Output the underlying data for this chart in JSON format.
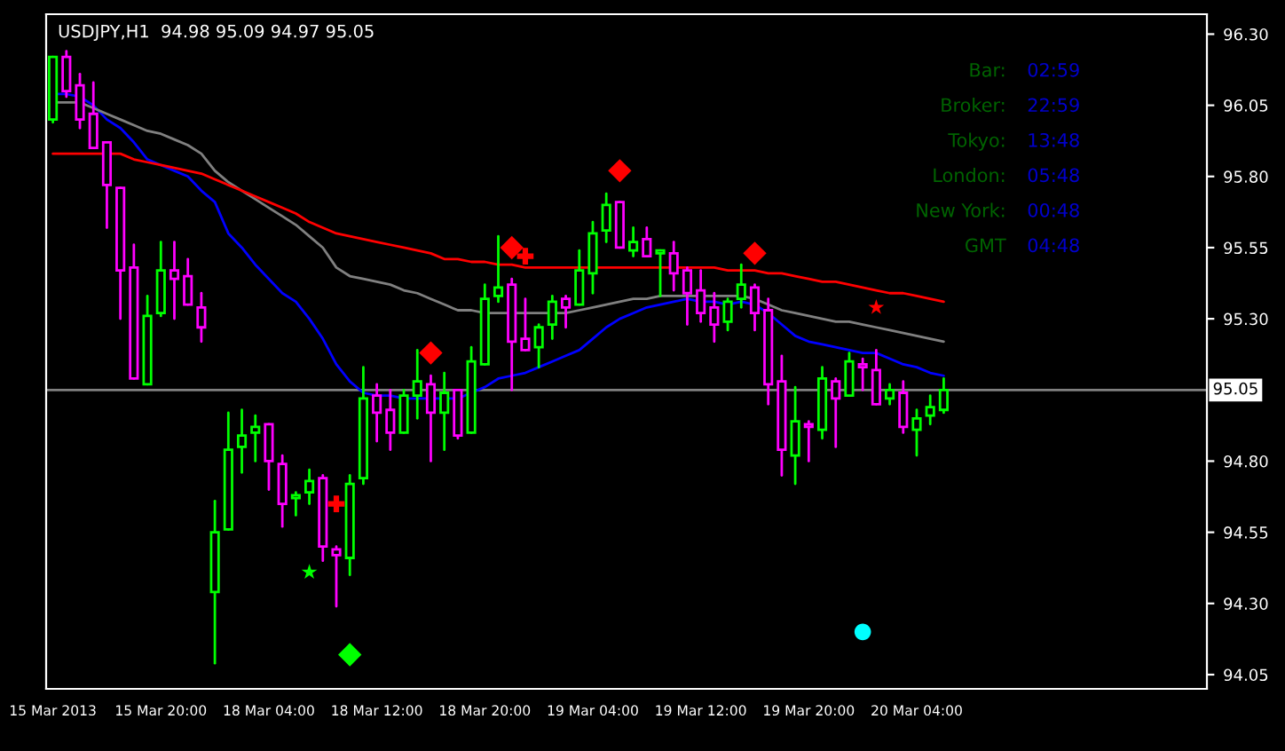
{
  "chart_data": {
    "type": "candlestick",
    "title": "USDJPY,H1  94.98 95.09 94.97 95.05",
    "categories": [
      "15 Mar 2013",
      null,
      null,
      null,
      null,
      null,
      null,
      null,
      "15 Mar 20:00",
      null,
      null,
      null,
      null,
      null,
      null,
      null,
      "18 Mar 04:00",
      null,
      null,
      null,
      null,
      null,
      null,
      null,
      "18 Mar 12:00",
      null,
      null,
      null,
      null,
      null,
      null,
      null,
      "18 Mar 20:00",
      null,
      null,
      null,
      null,
      null,
      null,
      null,
      "19 Mar 04:00",
      null,
      null,
      null,
      null,
      null,
      null,
      null,
      "19 Mar 12:00",
      null,
      null,
      null,
      null,
      null,
      null,
      null,
      "19 Mar 20:00",
      null,
      null,
      null,
      null,
      null,
      null,
      null,
      "20 Mar 04:00",
      null,
      null
    ],
    "ohlc": [
      [
        96.0,
        96.22,
        95.99,
        96.22
      ],
      [
        96.22,
        96.24,
        96.08,
        96.1
      ],
      [
        96.12,
        96.16,
        95.97,
        96.0
      ],
      [
        96.02,
        96.13,
        95.9,
        95.9
      ],
      [
        95.92,
        95.92,
        95.62,
        95.77
      ],
      [
        95.76,
        95.76,
        95.3,
        95.47
      ],
      [
        95.48,
        95.56,
        95.09,
        95.09
      ],
      [
        95.07,
        95.38,
        95.07,
        95.31
      ],
      [
        95.32,
        95.57,
        95.31,
        95.47
      ],
      [
        95.47,
        95.57,
        95.3,
        95.44
      ],
      [
        95.45,
        95.51,
        95.35,
        95.35
      ],
      [
        95.34,
        95.39,
        95.22,
        95.27
      ],
      [
        94.34,
        94.66,
        94.09,
        94.55
      ],
      [
        94.56,
        94.97,
        94.56,
        94.84
      ],
      [
        94.85,
        94.98,
        94.76,
        94.89
      ],
      [
        94.9,
        94.96,
        94.8,
        94.92
      ],
      [
        94.93,
        94.93,
        94.7,
        94.8
      ],
      [
        94.79,
        94.82,
        94.57,
        94.65
      ],
      [
        94.67,
        94.69,
        94.61,
        94.68
      ],
      [
        94.69,
        94.77,
        94.65,
        94.73
      ],
      [
        94.74,
        94.75,
        94.45,
        94.5
      ],
      [
        94.49,
        94.5,
        94.29,
        94.47
      ],
      [
        94.46,
        94.75,
        94.4,
        94.72
      ],
      [
        94.74,
        95.13,
        94.72,
        95.02
      ],
      [
        95.03,
        95.07,
        94.87,
        94.97
      ],
      [
        94.98,
        95.05,
        94.84,
        94.9
      ],
      [
        94.9,
        95.05,
        94.9,
        95.03
      ],
      [
        95.03,
        95.19,
        94.95,
        95.08
      ],
      [
        95.07,
        95.1,
        94.8,
        94.97
      ],
      [
        94.97,
        95.11,
        94.84,
        95.04
      ],
      [
        95.05,
        95.05,
        94.88,
        94.89
      ],
      [
        94.9,
        95.2,
        94.9,
        95.15
      ],
      [
        95.14,
        95.42,
        95.14,
        95.37
      ],
      [
        95.38,
        95.59,
        95.36,
        95.41
      ],
      [
        95.42,
        95.44,
        95.05,
        95.22
      ],
      [
        95.23,
        95.37,
        95.19,
        95.19
      ],
      [
        95.2,
        95.28,
        95.13,
        95.27
      ],
      [
        95.28,
        95.38,
        95.23,
        95.36
      ],
      [
        95.37,
        95.38,
        95.27,
        95.34
      ],
      [
        95.35,
        95.54,
        95.35,
        95.47
      ],
      [
        95.46,
        95.64,
        95.39,
        95.6
      ],
      [
        95.61,
        95.74,
        95.57,
        95.7
      ],
      [
        95.71,
        95.71,
        95.55,
        95.55
      ],
      [
        95.54,
        95.62,
        95.52,
        95.57
      ],
      [
        95.58,
        95.62,
        95.52,
        95.52
      ],
      [
        95.53,
        95.54,
        95.38,
        95.54
      ],
      [
        95.53,
        95.57,
        95.4,
        95.46
      ],
      [
        95.47,
        95.48,
        95.28,
        95.39
      ],
      [
        95.4,
        95.47,
        95.29,
        95.32
      ],
      [
        95.34,
        95.39,
        95.22,
        95.28
      ],
      [
        95.29,
        95.37,
        95.26,
        95.36
      ],
      [
        95.37,
        95.49,
        95.34,
        95.42
      ],
      [
        95.41,
        95.42,
        95.26,
        95.32
      ],
      [
        95.33,
        95.37,
        95.0,
        95.07
      ],
      [
        95.08,
        95.17,
        94.75,
        94.84
      ],
      [
        94.82,
        95.06,
        94.72,
        94.94
      ],
      [
        94.93,
        94.94,
        94.8,
        94.92
      ],
      [
        94.91,
        95.13,
        94.88,
        95.09
      ],
      [
        95.08,
        95.09,
        94.85,
        95.02
      ],
      [
        95.03,
        95.18,
        95.03,
        95.15
      ],
      [
        95.14,
        95.16,
        95.05,
        95.13
      ],
      [
        95.12,
        95.19,
        95.0,
        95.0
      ],
      [
        95.02,
        95.07,
        95.0,
        95.05
      ],
      [
        95.04,
        95.08,
        94.9,
        94.92
      ],
      [
        94.91,
        94.98,
        94.82,
        94.95
      ],
      [
        94.96,
        95.03,
        94.93,
        94.99
      ],
      [
        94.98,
        95.09,
        94.97,
        95.05
      ]
    ],
    "colors": [
      "#00ff00",
      "#ff00ff",
      "#ff00ff",
      "#ff00ff",
      "#ff00ff",
      "#ff00ff",
      "#ff00ff",
      "#00ff00",
      "#00ff00",
      "#ff00ff",
      "#ff00ff",
      "#ff00ff",
      "#00ff00",
      "#00ff00",
      "#00ff00",
      "#00ff00",
      "#ff00ff",
      "#ff00ff",
      "#00ff00",
      "#00ff00",
      "#ff00ff",
      "#ff00ff",
      "#00ff00",
      "#00ff00",
      "#ff00ff",
      "#ff00ff",
      "#00ff00",
      "#00ff00",
      "#ff00ff",
      "#00ff00",
      "#ff00ff",
      "#00ff00",
      "#00ff00",
      "#00ff00",
      "#ff00ff",
      "#ff00ff",
      "#00ff00",
      "#00ff00",
      "#ff00ff",
      "#00ff00",
      "#00ff00",
      "#00ff00",
      "#ff00ff",
      "#00ff00",
      "#ff00ff",
      "#00ff00",
      "#ff00ff",
      "#ff00ff",
      "#ff00ff",
      "#ff00ff",
      "#00ff00",
      "#00ff00",
      "#ff00ff",
      "#ff00ff",
      "#ff00ff",
      "#00ff00",
      "#ff00ff",
      "#00ff00",
      "#ff00ff",
      "#00ff00",
      "#ff00ff",
      "#ff00ff",
      "#00ff00",
      "#ff00ff",
      "#00ff00",
      "#00ff00",
      "#00ff00"
    ],
    "series": [
      {
        "type": "line",
        "color": "#0000ff",
        "values": [
          96.09,
          96.09,
          96.08,
          96.05,
          96.0,
          95.97,
          95.92,
          95.86,
          95.84,
          95.82,
          95.8,
          95.75,
          95.71,
          95.6,
          95.55,
          95.49,
          95.44,
          95.39,
          95.36,
          95.3,
          95.23,
          95.14,
          95.08,
          95.04,
          95.03,
          95.03,
          95.02,
          95.02,
          95.02,
          95.02,
          95.02,
          95.04,
          95.06,
          95.09,
          95.1,
          95.11,
          95.13,
          95.15,
          95.17,
          95.19,
          95.23,
          95.27,
          95.3,
          95.32,
          95.34,
          95.35,
          95.36,
          95.37,
          95.36,
          95.36,
          95.35,
          95.36,
          95.35,
          95.32,
          95.28,
          95.24,
          95.22,
          95.21,
          95.2,
          95.19,
          95.18,
          95.18,
          95.16,
          95.14,
          95.13,
          95.11,
          95.1
        ]
      },
      {
        "type": "line",
        "color": "#808080",
        "values": [
          96.06,
          96.06,
          96.06,
          96.04,
          96.02,
          96.0,
          95.98,
          95.96,
          95.95,
          95.93,
          95.91,
          95.88,
          95.82,
          95.78,
          95.75,
          95.72,
          95.69,
          95.66,
          95.63,
          95.59,
          95.55,
          95.48,
          95.45,
          95.44,
          95.43,
          95.42,
          95.4,
          95.39,
          95.37,
          95.35,
          95.33,
          95.33,
          95.32,
          95.32,
          95.32,
          95.32,
          95.32,
          95.32,
          95.32,
          95.33,
          95.34,
          95.35,
          95.36,
          95.37,
          95.37,
          95.38,
          95.38,
          95.38,
          95.38,
          95.38,
          95.38,
          95.38,
          95.37,
          95.35,
          95.33,
          95.32,
          95.31,
          95.3,
          95.29,
          95.29,
          95.28,
          95.27,
          95.26,
          95.25,
          95.24,
          95.23,
          95.22
        ]
      },
      {
        "type": "line",
        "color": "#ff0000",
        "values": [
          95.88,
          95.88,
          95.88,
          95.88,
          95.88,
          95.88,
          95.86,
          95.85,
          95.84,
          95.83,
          95.82,
          95.81,
          95.79,
          95.77,
          95.75,
          95.73,
          95.71,
          95.69,
          95.67,
          95.64,
          95.62,
          95.6,
          95.59,
          95.58,
          95.57,
          95.56,
          95.55,
          95.54,
          95.53,
          95.51,
          95.51,
          95.5,
          95.5,
          95.49,
          95.49,
          95.48,
          95.48,
          95.48,
          95.48,
          95.48,
          95.48,
          95.48,
          95.48,
          95.48,
          95.48,
          95.48,
          95.48,
          95.48,
          95.48,
          95.48,
          95.47,
          95.47,
          95.47,
          95.46,
          95.46,
          95.45,
          95.44,
          95.43,
          95.43,
          95.42,
          95.41,
          95.4,
          95.39,
          95.39,
          95.38,
          95.37,
          95.36
        ]
      },
      {
        "type": "scatter",
        "marker": "diamond",
        "color": "#ff0000",
        "values": [
          null,
          null,
          null,
          null,
          null,
          null,
          null,
          null,
          null,
          null,
          null,
          null,
          null,
          null,
          null,
          null,
          null,
          null,
          null,
          null,
          null,
          null,
          null,
          null,
          null,
          null,
          null,
          null,
          95.18,
          null,
          null,
          null,
          null,
          null,
          95.55,
          null,
          null,
          null,
          null,
          null,
          null,
          null,
          95.82,
          null,
          null,
          null,
          null,
          null,
          null,
          null,
          null,
          null,
          95.53,
          null,
          null,
          null,
          null,
          null,
          null,
          null,
          null,
          null,
          null,
          null,
          null,
          null,
          null
        ]
      },
      {
        "type": "scatter",
        "marker": "diamond",
        "color": "#00ff00",
        "values": [
          null,
          null,
          null,
          null,
          null,
          null,
          null,
          null,
          null,
          null,
          null,
          null,
          null,
          null,
          null,
          null,
          null,
          null,
          null,
          null,
          null,
          null,
          94.12,
          null,
          null,
          null,
          null,
          null,
          null,
          null,
          null,
          null,
          null,
          null,
          null,
          null,
          null,
          null,
          null,
          null,
          null,
          null,
          null,
          null,
          null,
          null,
          null,
          null,
          null,
          null,
          null,
          null,
          null,
          null,
          null,
          null,
          null,
          null,
          null,
          null,
          null,
          null,
          null,
          null,
          null,
          null,
          null
        ]
      },
      {
        "type": "scatter",
        "marker": "cross",
        "color": "#ff0000",
        "values": [
          null,
          null,
          null,
          null,
          null,
          null,
          null,
          null,
          null,
          null,
          null,
          null,
          null,
          null,
          null,
          null,
          null,
          null,
          null,
          null,
          null,
          94.65,
          null,
          null,
          null,
          null,
          null,
          null,
          null,
          null,
          null,
          null,
          null,
          null,
          null,
          95.52,
          null,
          null,
          null,
          null,
          null,
          null,
          null,
          null,
          null,
          null,
          null,
          null,
          null,
          null,
          null,
          null,
          null,
          null,
          null,
          null,
          null,
          null,
          null,
          null,
          null,
          null,
          null,
          null,
          null,
          null,
          null
        ]
      },
      {
        "type": "scatter",
        "marker": "star",
        "color": "#ff0000",
        "values": [
          null,
          null,
          null,
          null,
          null,
          null,
          null,
          null,
          null,
          null,
          null,
          null,
          null,
          null,
          null,
          null,
          null,
          null,
          null,
          null,
          null,
          null,
          null,
          null,
          null,
          null,
          null,
          null,
          null,
          null,
          null,
          null,
          null,
          null,
          null,
          null,
          null,
          null,
          null,
          null,
          null,
          null,
          null,
          null,
          null,
          null,
          null,
          null,
          null,
          null,
          null,
          null,
          null,
          null,
          null,
          null,
          null,
          null,
          null,
          null,
          null,
          95.34,
          null,
          null,
          null,
          null,
          null
        ]
      },
      {
        "type": "scatter",
        "marker": "star",
        "color": "#00ff00",
        "values": [
          null,
          null,
          null,
          null,
          null,
          null,
          null,
          null,
          null,
          null,
          null,
          null,
          null,
          null,
          null,
          null,
          null,
          null,
          null,
          94.41,
          null,
          null,
          null,
          null,
          null,
          null,
          null,
          null,
          null,
          null,
          null,
          null,
          null,
          null,
          null,
          null,
          null,
          null,
          null,
          null,
          null,
          null,
          null,
          null,
          null,
          null,
          null,
          null,
          null,
          null,
          null,
          null,
          null,
          null,
          null,
          null,
          null,
          null,
          null,
          null,
          null,
          null,
          null,
          null,
          null,
          null,
          null
        ]
      },
      {
        "type": "scatter",
        "marker": "circle",
        "color": "#00ffff",
        "values": [
          null,
          null,
          null,
          null,
          null,
          null,
          null,
          null,
          null,
          null,
          null,
          null,
          null,
          null,
          null,
          null,
          null,
          null,
          null,
          null,
          null,
          null,
          null,
          null,
          null,
          null,
          null,
          null,
          null,
          null,
          null,
          null,
          null,
          null,
          null,
          null,
          null,
          null,
          null,
          null,
          null,
          null,
          null,
          null,
          null,
          null,
          null,
          null,
          null,
          null,
          null,
          null,
          null,
          null,
          null,
          null,
          null,
          null,
          null,
          null,
          94.2,
          null,
          null,
          null,
          null,
          null,
          null
        ]
      }
    ],
    "ref_lines": [
      {
        "axis": "y",
        "value": 95.05,
        "label": "95.05",
        "color": "#808080"
      }
    ],
    "ylim": [
      94.0,
      96.37
    ],
    "yticks": [
      {
        "value": 94.05,
        "label": "94.05"
      },
      {
        "value": 94.3,
        "label": "94.30"
      },
      {
        "value": 94.55,
        "label": "94.55"
      },
      {
        "value": 94.8,
        "label": "94.80"
      },
      {
        "value": 95.3,
        "label": "95.30"
      },
      {
        "value": 95.55,
        "label": "95.55"
      },
      {
        "value": 95.8,
        "label": "95.80"
      },
      {
        "value": 96.05,
        "label": "96.05"
      },
      {
        "value": 96.3,
        "label": "96.30"
      }
    ],
    "annotations": [
      "Bar:",
      "02:59",
      "Broker:",
      "22:59",
      "Tokyo:",
      "13:48",
      "London:",
      "05:48",
      "New York:",
      "00:48",
      "GMT",
      "04:48"
    ],
    "grid": false,
    "legend": false
  }
}
